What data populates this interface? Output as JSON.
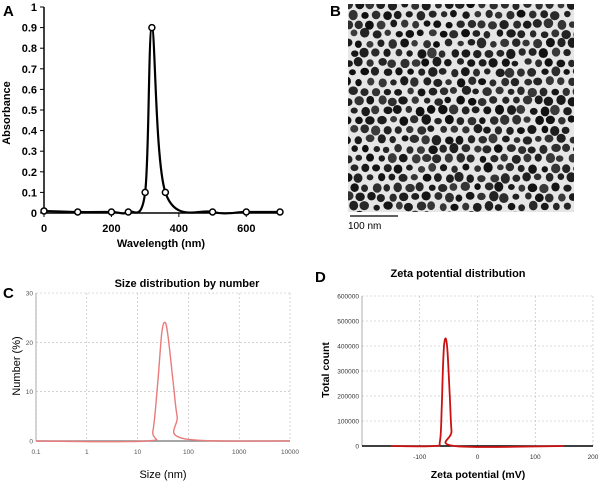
{
  "panels": {
    "a": {
      "letter": "A"
    },
    "b": {
      "letter": "B",
      "scale_bar_label": "100 nm"
    },
    "c": {
      "letter": "C"
    },
    "d": {
      "letter": "D"
    }
  },
  "colors": {
    "curve_a": "#000000",
    "curve_c": "#e87b7b",
    "curve_d": "#cc1111",
    "tem_bg": "#e6e6e6",
    "tem_particle": "#1a1a1a"
  },
  "chart_data": [
    {
      "id": "a",
      "type": "line",
      "title": "",
      "xlabel": "Wavelength (nm)",
      "ylabel": "Absorbance",
      "xlim": [
        0,
        700
      ],
      "ylim": [
        0,
        1
      ],
      "xticks": [
        0,
        200,
        400,
        600
      ],
      "yticks": [
        0,
        0.1,
        0.2,
        0.3,
        0.4,
        0.5,
        0.6,
        0.7,
        0.8,
        0.9,
        1
      ],
      "ytick_labels": [
        "0",
        "0.1",
        "0.2",
        "0.3",
        "0.4",
        "0.5",
        "0.6",
        "0.7",
        "0.8",
        "0.9",
        "1"
      ],
      "markers": true,
      "x": [
        0,
        100,
        200,
        250,
        300,
        320,
        360,
        500,
        600,
        700
      ],
      "y": [
        0.01,
        0.005,
        0.005,
        0.005,
        0.1,
        0.9,
        0.1,
        0.005,
        0.005,
        0.005
      ]
    },
    {
      "id": "c",
      "type": "line",
      "title": "Size distribution by number",
      "xlabel": "Size (nm)",
      "ylabel": "Number (%)",
      "xscale": "log",
      "xlim": [
        0.1,
        10000
      ],
      "ylim": [
        0,
        30
      ],
      "xticks": [
        0.1,
        1,
        10,
        100,
        1000,
        10000
      ],
      "xtick_labels": [
        "0.1",
        "1",
        "10",
        "100",
        "1000",
        "10000"
      ],
      "yticks": [
        0,
        10,
        20,
        30
      ],
      "ytick_labels": [
        "0",
        "10",
        "20",
        "30"
      ],
      "x": [
        0.1,
        15,
        20,
        25,
        30,
        35,
        40,
        50,
        60,
        80,
        10000
      ],
      "y": [
        0,
        0,
        2,
        12,
        22,
        24,
        21,
        12,
        5,
        0.5,
        0
      ]
    },
    {
      "id": "d",
      "type": "line",
      "title": "Zeta potential distribution",
      "xlabel": "Zeta potential (mV)",
      "ylabel": "Total count",
      "xlim": [
        -200,
        200
      ],
      "ylim": [
        0,
        600000
      ],
      "xticks": [
        -100,
        0,
        100,
        200
      ],
      "xtick_labels": [
        "-100",
        "0",
        "100",
        "200"
      ],
      "yticks": [
        0,
        100000,
        200000,
        300000,
        400000,
        500000,
        600000
      ],
      "ytick_labels": [
        "0",
        "100000",
        "200000",
        "300000",
        "400000",
        "500000",
        "600000"
      ],
      "x": [
        -150,
        -75,
        -65,
        -62,
        -60,
        -58,
        -55,
        -52,
        -48,
        -45,
        -40,
        150
      ],
      "y": [
        0,
        0,
        20000,
        150000,
        300000,
        400000,
        430000,
        380000,
        200000,
        60000,
        0,
        0
      ]
    }
  ]
}
